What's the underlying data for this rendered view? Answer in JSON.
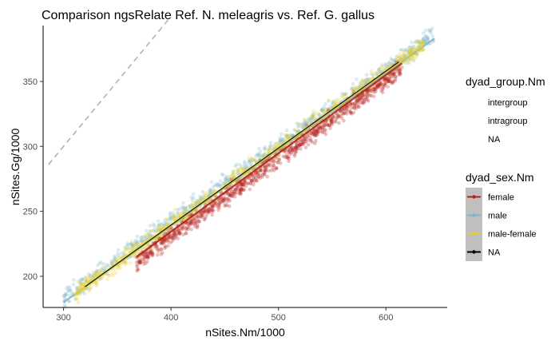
{
  "chart_data": {
    "type": "scatter",
    "title": "Comparison ngsRelate Ref. N. meleagris vs. Ref. G. gallus",
    "xlabel": "nSites.Nm/1000",
    "ylabel": "nSites.Gg/1000",
    "xlim": [
      281,
      657
    ],
    "ylim": [
      176,
      393
    ],
    "x_ticks": [
      300,
      400,
      500,
      600
    ],
    "y_ticks": [
      200,
      250,
      300,
      350
    ],
    "grid": false,
    "legend_position": "right",
    "reference_line": {
      "type": "identity",
      "style": "dashed",
      "color": "#b3b3b3"
    },
    "legend_group": {
      "title": "dyad_group.Nm",
      "entries": [
        "intergroup",
        "intragroup",
        "NA"
      ]
    },
    "legend_sex": {
      "title": "dyad_sex.Nm",
      "entries": [
        {
          "name": "female",
          "color": "#b2221f"
        },
        {
          "name": "male",
          "color": "#7fb6c8"
        },
        {
          "name": "male-female",
          "color": "#e8cf2a"
        },
        {
          "name": "NA",
          "color": "#000000"
        }
      ]
    },
    "series": [
      {
        "name": "male",
        "color": "#7fb6c8",
        "x_range": [
          300,
          645
        ],
        "fit": [
          [
            300,
            180
          ],
          [
            645,
            383
          ]
        ],
        "offset": 3,
        "spread": 5
      },
      {
        "name": "male-female",
        "color": "#e8cf2a",
        "x_range": [
          310,
          635
        ],
        "fit": [
          [
            310,
            186
          ],
          [
            635,
            378
          ]
        ],
        "offset": 0,
        "spread": 5
      },
      {
        "name": "female",
        "color": "#b2221f",
        "x_range": [
          368,
          615
        ],
        "fit": [
          [
            368,
            215
          ],
          [
            615,
            364
          ]
        ],
        "offset": -4,
        "spread": 5
      },
      {
        "name": "NA",
        "color": "#000000",
        "x_range": [
          320,
          612
        ],
        "fit": [
          [
            320,
            192
          ],
          [
            612,
            365
          ]
        ],
        "offset": 0,
        "spread": 1
      }
    ]
  }
}
